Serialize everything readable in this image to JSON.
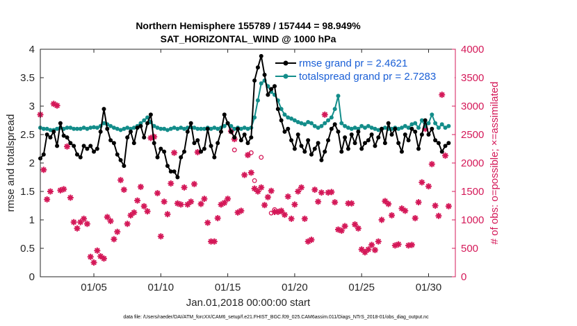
{
  "chart_data": {
    "type": "line",
    "title_line1": "Northern Hemisphere 155789 / 157444 = 98.949%",
    "title_line2": "SAT_HORIZONTAL_WIND @ 1000 hPa",
    "xlabel": "Jan.01,2018 00:00:00 start",
    "ylabel_left": "rmse and totalspread",
    "ylabel_right": "# of obs: o=possible; ×=assimilated",
    "footer": "data file: /Users/raeder/DAI/ATM_forcXX/CAM6_setup/f.e21.FHIST_BGC.f09_025.CAM6assim.011/Diags_NTrS_2018-01/obs_diag_output.nc",
    "xlim": [
      1,
      32
    ],
    "ylim_left": [
      0,
      4
    ],
    "ylim_right": [
      0,
      4000
    ],
    "x_ticks": [
      5,
      10,
      15,
      20,
      25,
      30
    ],
    "x_tick_labels": [
      "01/05",
      "01/10",
      "01/15",
      "01/20",
      "01/25",
      "01/30"
    ],
    "y_ticks_left": [
      0,
      0.5,
      1,
      1.5,
      2,
      2.5,
      3,
      3.5,
      4
    ],
    "y_tick_labels_left": [
      "0",
      "0.5",
      "1",
      "1.5",
      "2",
      "2.5",
      "3",
      "3.5",
      "4"
    ],
    "y_ticks_right": [
      0,
      500,
      1000,
      1500,
      2000,
      2500,
      3000,
      3500,
      4000
    ],
    "y_tick_labels_right": [
      "0",
      "500",
      "1000",
      "1500",
      "2000",
      "2500",
      "3000",
      "3500",
      "4000"
    ],
    "legend": {
      "position": "top-right",
      "entries": [
        "rmse grand pr = 2.4621",
        "totalspread grand pr = 2.7283"
      ]
    },
    "colors": {
      "rmse": "#000000",
      "totalspread": "#138d8a",
      "obs": "#d41858",
      "legend_text": "#1a5fd6",
      "right_axis": "#d41858"
    },
    "series": [
      {
        "name": "rmse",
        "x": [
          1.0,
          1.25,
          1.5,
          1.75,
          2.0,
          2.25,
          2.5,
          2.75,
          3.0,
          3.25,
          3.5,
          3.75,
          4.0,
          4.25,
          4.5,
          4.75,
          5.0,
          5.25,
          5.5,
          5.75,
          6.0,
          6.25,
          6.5,
          6.75,
          7.0,
          7.25,
          7.5,
          7.75,
          8.0,
          8.25,
          8.5,
          8.75,
          9.0,
          9.25,
          9.5,
          9.75,
          10.0,
          10.25,
          10.5,
          10.75,
          11.0,
          11.25,
          11.5,
          11.75,
          12.0,
          12.25,
          12.5,
          12.75,
          13.0,
          13.25,
          13.5,
          13.75,
          14.0,
          14.25,
          14.5,
          14.75,
          15.0,
          15.25,
          15.5,
          15.75,
          16.0,
          16.25,
          16.5,
          16.75,
          17.0,
          17.25,
          17.5,
          17.75,
          18.0,
          18.25,
          18.5,
          18.75,
          19.0,
          19.25,
          19.5,
          19.75,
          20.0,
          20.25,
          20.5,
          20.75,
          21.0,
          21.25,
          21.5,
          21.75,
          22.0,
          22.25,
          22.5,
          22.75,
          23.0,
          23.25,
          23.5,
          23.75,
          24.0,
          24.25,
          24.5,
          24.75,
          25.0,
          25.25,
          25.5,
          25.75,
          26.0,
          26.25,
          26.5,
          26.75,
          27.0,
          27.25,
          27.5,
          27.75,
          28.0,
          28.25,
          28.5,
          28.75,
          29.0,
          29.25,
          29.5,
          29.75,
          30.0,
          30.25,
          30.5,
          30.75,
          31.0,
          31.25,
          31.5
        ],
        "values": [
          2.08,
          2.15,
          2.5,
          2.45,
          2.55,
          2.3,
          2.7,
          2.48,
          2.45,
          2.35,
          2.3,
          2.15,
          2.1,
          2.3,
          2.25,
          2.3,
          2.2,
          2.25,
          2.55,
          2.95,
          2.6,
          2.4,
          2.35,
          2.15,
          2.05,
          1.95,
          2.45,
          2.55,
          2.35,
          2.62,
          2.65,
          2.45,
          2.7,
          2.85,
          2.35,
          2.1,
          2.25,
          2.2,
          1.95,
          1.85,
          1.85,
          1.75,
          2.1,
          2.2,
          2.55,
          2.7,
          2.35,
          2.4,
          2.2,
          2.25,
          2.6,
          2.3,
          2.1,
          2.35,
          2.55,
          2.85,
          2.7,
          2.55,
          2.45,
          2.6,
          2.4,
          2.5,
          2.35,
          2.45,
          3.45,
          3.68,
          3.88,
          3.55,
          3.2,
          3.3,
          3.35,
          2.95,
          2.75,
          2.55,
          2.6,
          2.4,
          2.25,
          2.5,
          2.3,
          2.2,
          2.4,
          2.15,
          2.25,
          2.35,
          2.05,
          2.2,
          2.4,
          2.6,
          2.68,
          2.55,
          2.2,
          2.45,
          2.25,
          2.5,
          2.35,
          2.55,
          2.25,
          2.35,
          2.4,
          2.5,
          2.3,
          2.45,
          2.6,
          2.35,
          2.7,
          2.5,
          2.6,
          2.35,
          2.2,
          2.5,
          2.4,
          2.6,
          2.55,
          2.25,
          2.5,
          2.75,
          2.5,
          2.6,
          2.4,
          2.35,
          2.2,
          2.3,
          2.35
        ],
        "marker": "filled-circle"
      },
      {
        "name": "totalspread",
        "x": [
          1.0,
          1.25,
          1.5,
          1.75,
          2.0,
          2.25,
          2.5,
          2.75,
          3.0,
          3.25,
          3.5,
          3.75,
          4.0,
          4.25,
          4.5,
          4.75,
          5.0,
          5.25,
          5.5,
          5.75,
          6.0,
          6.25,
          6.5,
          6.75,
          7.0,
          7.25,
          7.5,
          7.75,
          8.0,
          8.25,
          8.5,
          8.75,
          9.0,
          9.25,
          9.5,
          9.75,
          10.0,
          10.25,
          10.5,
          10.75,
          11.0,
          11.25,
          11.5,
          11.75,
          12.0,
          12.25,
          12.5,
          12.75,
          13.0,
          13.25,
          13.5,
          13.75,
          14.0,
          14.25,
          14.5,
          14.75,
          15.0,
          15.25,
          15.5,
          15.75,
          16.0,
          16.25,
          16.5,
          16.75,
          17.0,
          17.25,
          17.5,
          17.75,
          18.0,
          18.25,
          18.5,
          18.75,
          19.0,
          19.25,
          19.5,
          19.75,
          20.0,
          20.25,
          20.5,
          20.75,
          21.0,
          21.25,
          21.5,
          21.75,
          22.0,
          22.25,
          22.5,
          22.75,
          23.0,
          23.25,
          23.5,
          23.75,
          24.0,
          24.25,
          24.5,
          24.75,
          25.0,
          25.25,
          25.5,
          25.75,
          26.0,
          26.25,
          26.5,
          26.75,
          27.0,
          27.25,
          27.5,
          27.75,
          28.0,
          28.25,
          28.5,
          28.75,
          29.0,
          29.25,
          29.5,
          29.75,
          30.0,
          30.25,
          30.5,
          30.75,
          31.0,
          31.25,
          31.5
        ],
        "values": [
          2.62,
          2.6,
          2.6,
          2.58,
          2.58,
          2.6,
          2.62,
          2.6,
          2.62,
          2.62,
          2.6,
          2.6,
          2.6,
          2.62,
          2.6,
          2.62,
          2.63,
          2.62,
          2.65,
          2.7,
          2.68,
          2.65,
          2.62,
          2.6,
          2.58,
          2.6,
          2.62,
          2.6,
          2.62,
          2.65,
          2.7,
          2.75,
          2.8,
          2.72,
          2.65,
          2.62,
          2.6,
          2.6,
          2.58,
          2.6,
          2.62,
          2.6,
          2.62,
          2.6,
          2.62,
          2.63,
          2.62,
          2.6,
          2.6,
          2.6,
          2.62,
          2.6,
          2.62,
          2.6,
          2.62,
          2.65,
          2.7,
          2.65,
          2.6,
          2.62,
          2.6,
          2.62,
          2.6,
          2.62,
          2.8,
          3.1,
          3.4,
          3.45,
          3.35,
          3.25,
          3.2,
          3.1,
          2.95,
          2.85,
          2.8,
          2.78,
          2.75,
          2.72,
          2.7,
          2.68,
          2.72,
          2.7,
          2.65,
          2.62,
          2.65,
          2.7,
          2.75,
          2.8,
          2.95,
          3.18,
          2.7,
          2.65,
          2.62,
          2.6,
          2.62,
          2.6,
          2.65,
          2.62,
          2.65,
          2.62,
          2.6,
          2.58,
          2.6,
          2.62,
          2.6,
          2.6,
          2.62,
          2.6,
          2.62,
          2.65,
          2.62,
          2.68,
          2.7,
          2.62,
          2.75,
          2.65,
          2.7,
          2.85,
          2.7,
          2.62,
          2.68,
          2.62,
          2.65
        ],
        "marker": "filled-circle"
      },
      {
        "name": "obs_assimilated",
        "axis": "right",
        "x": [
          1.0,
          1.25,
          1.5,
          1.75,
          2.0,
          2.25,
          2.5,
          2.75,
          3.0,
          3.25,
          3.5,
          3.75,
          4.0,
          4.25,
          4.5,
          4.75,
          5.0,
          5.25,
          5.5,
          5.75,
          6.0,
          6.25,
          6.5,
          6.75,
          7.0,
          7.25,
          7.5,
          7.75,
          8.0,
          8.25,
          8.5,
          8.75,
          9.0,
          9.25,
          9.5,
          9.75,
          10.0,
          10.25,
          10.5,
          10.75,
          11.0,
          11.25,
          11.5,
          11.75,
          12.0,
          12.25,
          12.5,
          12.75,
          13.0,
          13.25,
          13.5,
          13.75,
          14.0,
          14.25,
          14.5,
          14.75,
          15.0,
          15.25,
          15.5,
          15.75,
          16.0,
          16.25,
          16.5,
          16.75,
          17.0,
          17.25,
          17.5,
          17.75,
          18.0,
          18.25,
          18.5,
          18.75,
          19.0,
          19.25,
          19.5,
          19.75,
          20.0,
          20.25,
          20.5,
          20.75,
          21.0,
          21.25,
          21.5,
          21.75,
          22.0,
          22.25,
          22.5,
          22.75,
          23.0,
          23.25,
          23.5,
          23.75,
          24.0,
          24.25,
          24.5,
          24.75,
          25.0,
          25.25,
          25.5,
          25.75,
          26.0,
          26.25,
          26.5,
          26.75,
          27.0,
          27.25,
          27.5,
          27.75,
          28.0,
          28.25,
          28.5,
          28.75,
          29.0,
          29.25,
          29.5,
          29.75,
          30.0,
          30.25,
          30.5,
          30.75,
          31.0,
          31.25,
          31.5
        ],
        "values": [
          2850,
          1880,
          1360,
          1500,
          3040,
          3010,
          1520,
          1540,
          2290,
          1390,
          960,
          850,
          960,
          1020,
          930,
          350,
          250,
          460,
          360,
          320,
          1050,
          980,
          660,
          790,
          1700,
          1530,
          930,
          1080,
          1130,
          1340,
          1580,
          1240,
          1150,
          2440,
          2460,
          1470,
          710,
          1320,
          1100,
          1640,
          2180,
          1290,
          1270,
          1570,
          1270,
          1320,
          1630,
          2190,
          1280,
          1370,
          950,
          620,
          620,
          1030,
          1270,
          1300,
          1370,
          2560,
          2420,
          1130,
          1160,
          1790,
          2140,
          1830,
          1550,
          1500,
          1570,
          1260,
          1400,
          1510,
          1140,
          1140,
          1160,
          1090,
          1410,
          1020,
          1270,
          1500,
          1570,
          1020,
          620,
          650,
          1530,
          1320,
          1480,
          2850,
          1480,
          1490,
          1310,
          830,
          810,
          890,
          1290,
          1290,
          920,
          850,
          480,
          430,
          480,
          560,
          470,
          620,
          1000,
          1330,
          1280,
          1080,
          550,
          570,
          1200,
          1160,
          550,
          560,
          1030,
          1310,
          1660,
          2600,
          1590,
          1980,
          1250,
          1070,
          3200,
          2130,
          1240
        ]
      },
      {
        "name": "obs_possible",
        "axis": "right",
        "x": [
          15.5,
          16.75,
          17.0,
          17.5,
          18.25,
          18.5,
          19.0
        ],
        "values": [
          2230,
          2180,
          1690,
          2100,
          1120,
          1180,
          1150
        ]
      }
    ]
  }
}
